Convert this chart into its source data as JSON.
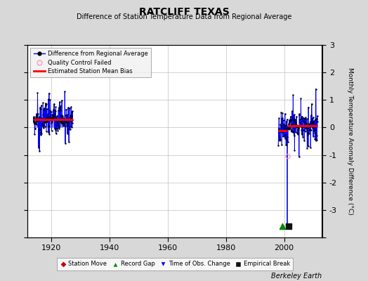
{
  "title": "RATCLIFF TEXAS",
  "subtitle": "Difference of Station Temperature Data from Regional Average",
  "ylabel": "Monthly Temperature Anomaly Difference (°C)",
  "credit": "Berkeley Earth",
  "background_color": "#d8d8d8",
  "plot_bg_color": "#ffffff",
  "ylim": [
    -4,
    3
  ],
  "xlim": [
    1912,
    2013
  ],
  "xticks": [
    1920,
    1940,
    1960,
    1980,
    2000
  ],
  "yticks": [
    -4,
    -3,
    -2,
    -1,
    0,
    1,
    2,
    3
  ],
  "grid_color": "#c0c0c0",
  "seg1_start": 1914.0,
  "seg1_end": 1927.5,
  "seg1_bias": 0.28,
  "seg2_start": 1998.0,
  "seg2_end": 2011.5,
  "seg2_bias1": -0.12,
  "seg2_bias2": 0.07,
  "break_year": 2001.0,
  "long_spike_x": 2001.0,
  "long_spike_y": -3.5,
  "record_gap_x": 1999.3,
  "empirical_break_x": 2001.5,
  "qc_x": 2001.3,
  "qc_y": -1.05,
  "line_color": "#0000ff",
  "bias_color": "#ff0000",
  "dot_color": "#000000",
  "qc_color": "#ff99bb",
  "record_gap_color": "#008800",
  "obs_change_color": "#0000ff",
  "empirical_break_color": "#111111",
  "station_move_color": "#cc0000",
  "marker_y": -3.58
}
